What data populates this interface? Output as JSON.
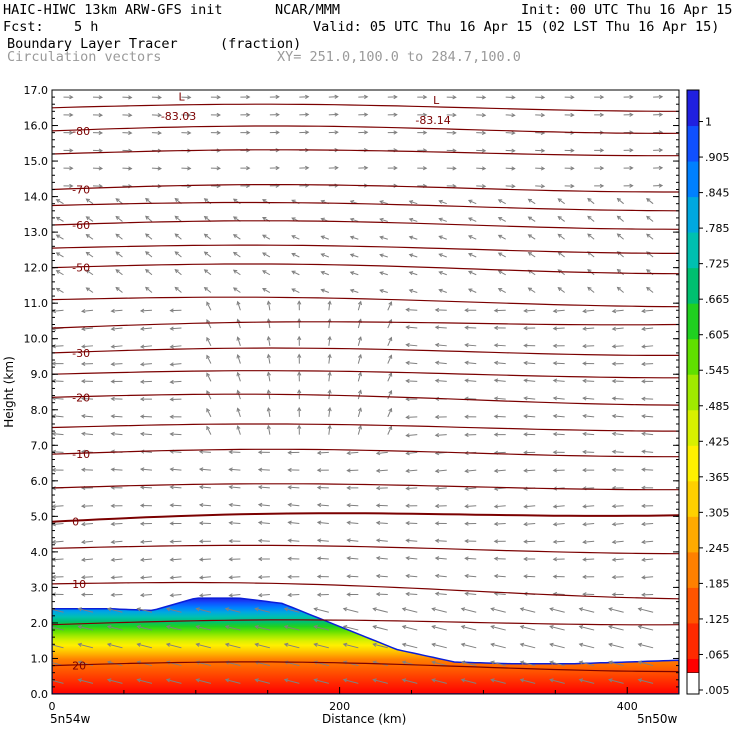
{
  "header": {
    "model": "HAIC-HIWC 13km ARW-GFS init",
    "org": "NCAR/MMM",
    "init": "Init: 00 UTC Thu 16 Apr 15",
    "fcst_label": "Fcst:",
    "fcst_value": "5 h",
    "valid": "Valid: 05 UTC Thu 16 Apr 15 (02 LST Thu 16 Apr 15)",
    "field_name": "Boundary Layer Tracer",
    "field_units": "(fraction)",
    "vector_name": "Circulation vectors",
    "xy_range": "XY= 251.0,100.0 to 284.7,100.0"
  },
  "footer": {
    "left": "5n54w",
    "center": "Distance (km)",
    "right": "5n50w"
  },
  "colors": {
    "contour": "#7b0000",
    "vector": "#808080"
  },
  "chart_data": {
    "type": "heatmap",
    "title": "Boundary Layer Tracer",
    "xlabel": "Distance (km)",
    "ylabel": "Height (km)",
    "xlim": [
      0,
      436
    ],
    "ylim": [
      0,
      17
    ],
    "x_ticks": [
      0,
      200,
      400
    ],
    "y_ticks": [
      0.0,
      1.0,
      2.0,
      3.0,
      4.0,
      5.0,
      6.0,
      7.0,
      8.0,
      9.0,
      10.0,
      11.0,
      12.0,
      13.0,
      14.0,
      15.0,
      16.0,
      17.0
    ],
    "colorbar": {
      "labels": [
        ".005",
        ".065",
        ".125",
        ".185",
        ".245",
        ".305",
        ".365",
        ".425",
        ".485",
        ".545",
        ".605",
        ".665",
        ".725",
        ".785",
        ".845",
        ".905",
        "1"
      ],
      "colors": [
        "#ff0000",
        "#ff2a00",
        "#ff5500",
        "#ff8000",
        "#ffaa00",
        "#ffd000",
        "#fff000",
        "#d8f000",
        "#a0ea00",
        "#60e000",
        "#20d020",
        "#00c070",
        "#00c0b0",
        "#00a8e0",
        "#0080ff",
        "#1050ff",
        "#2020e0"
      ]
    },
    "tracer_top_km": {
      "x": [
        0,
        40,
        70,
        100,
        130,
        160,
        200,
        240,
        280,
        320,
        360,
        400,
        436
      ],
      "y": [
        2.4,
        2.4,
        2.35,
        2.7,
        2.7,
        2.55,
        1.9,
        1.25,
        0.9,
        0.85,
        0.85,
        0.9,
        0.95
      ]
    },
    "temperature_contours": [
      {
        "label": "20",
        "y_left": 0.8,
        "y_right": 0.75
      },
      {
        "label": "10",
        "y_left": 3.1,
        "y_right": 2.8
      },
      {
        "label": "0",
        "y_left": 4.85,
        "y_right": 5.15
      },
      {
        "label": "-10",
        "y_left": 6.75,
        "y_right": 6.8
      },
      {
        "label": "-20",
        "y_left": 8.35,
        "y_right": 8.25
      },
      {
        "label": "-30",
        "y_left": 9.6,
        "y_right": 9.65
      },
      {
        "label": "-50",
        "y_left": 12.0,
        "y_right": 11.95
      },
      {
        "label": "-60",
        "y_left": 13.2,
        "y_right": 13.2
      },
      {
        "label": "-70",
        "y_left": 14.2,
        "y_right": 14.25
      },
      {
        "label": "-80",
        "y_left": 15.85,
        "y_right": 15.9
      }
    ],
    "annotations": [
      {
        "text": "L",
        "x": 88,
        "y": 16.7
      },
      {
        "text": "-83.03",
        "x": 88,
        "y": 16.15
      },
      {
        "text": "L",
        "x": 265,
        "y": 16.6
      },
      {
        "text": "-83.14",
        "x": 265,
        "y": 16.05
      }
    ]
  }
}
